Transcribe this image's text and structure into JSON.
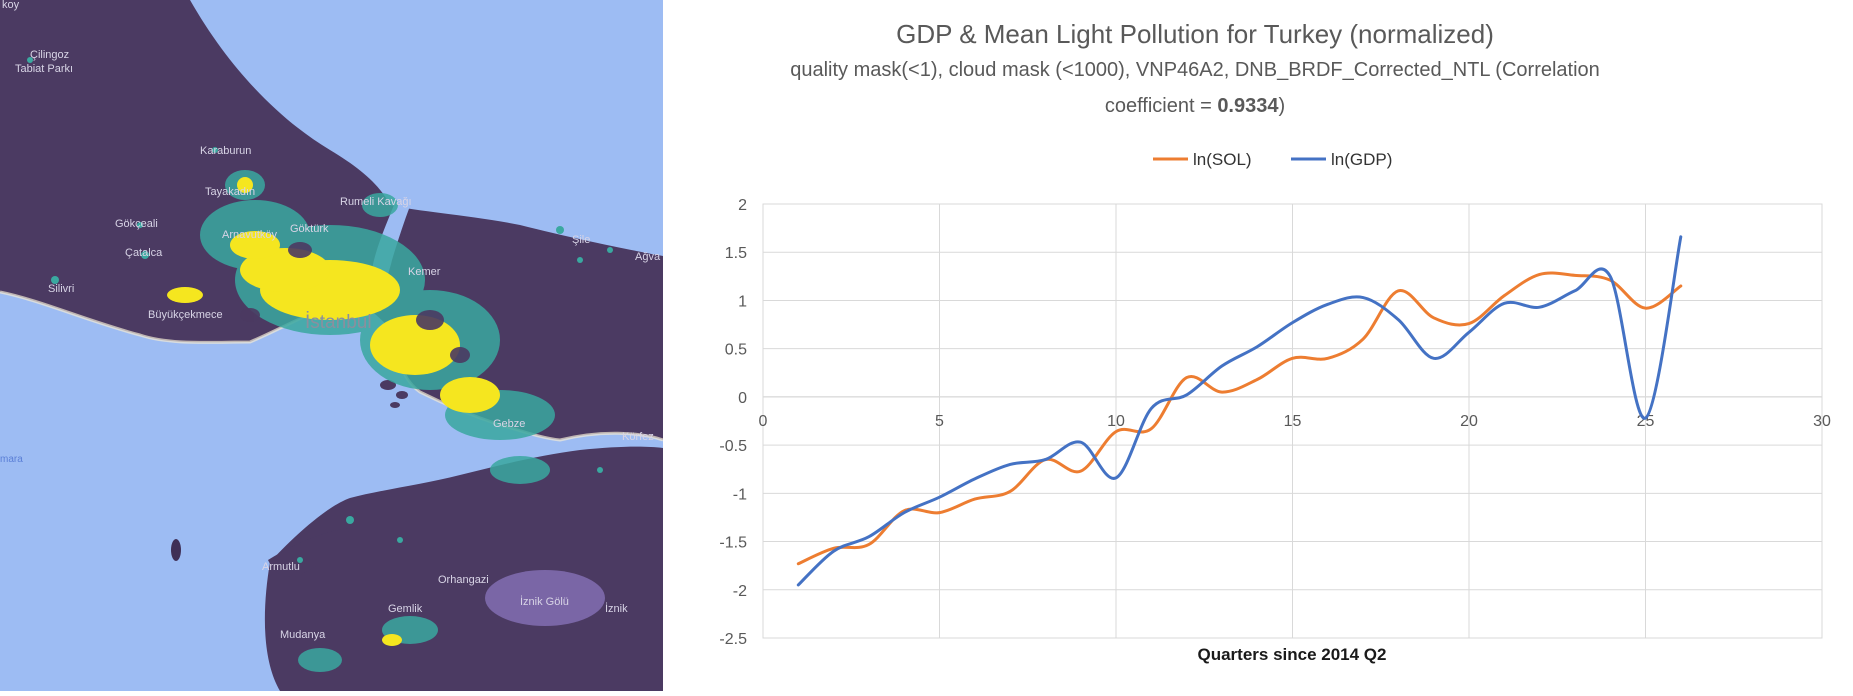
{
  "map": {
    "labels": {
      "city": "İstanbul",
      "cilingoz": "Çilingoz",
      "tabiat_parki": "Tabiat Parkı",
      "karaburun": "Karaburun",
      "tayakadin": "Tayakadın",
      "gokceali": "Gökçeali",
      "catalca": "Çatalca",
      "silivri": "Silivri",
      "buyukcekmece": "Büyükçekmece",
      "arnavutkoy": "Arnavutköy",
      "gokturk": "Göktürk",
      "rumelikavagi": "Rumeli Kavağı",
      "sile": "Şile",
      "agva": "Ağva",
      "kemer": "Kemer",
      "gebze": "Gebze",
      "korfez": "Körfez",
      "armutlu": "Armutlu",
      "orhangazi": "Orhangazi",
      "iznik_golu": "İznik Gölü",
      "iznik": "İznik",
      "gemlik": "Gemlik",
      "mudanya": "Mudanya",
      "marmara": "mara",
      "koy": "koy"
    },
    "colors": {
      "water": "#9dbcf3",
      "land": "#4b3a62",
      "light_high": "#f5e61f",
      "light_mid": "#3aa8a0"
    }
  },
  "chart_data": {
    "type": "line",
    "title": "GDP & Mean Light Pollution for Turkey (normalized)",
    "subtitle_line1": "quality mask(<1), cloud mask (<1000), VNP46A2, DNB_BRDF_Corrected_NTL (Correlation",
    "subtitle_line2_prefix": "coefficient = ",
    "subtitle_line2_value": "0.9334",
    "subtitle_line2_suffix": ")",
    "xlabel": "Quarters since 2014 Q2",
    "ylabel": "",
    "xlim": [
      0,
      30
    ],
    "ylim": [
      -2.5,
      2
    ],
    "x_ticks": [
      0,
      5,
      10,
      15,
      20,
      25,
      30
    ],
    "y_ticks": [
      2,
      1.5,
      1,
      0.5,
      0,
      -0.5,
      -1,
      -1.5,
      -2,
      -2.5
    ],
    "grid": true,
    "legend_position": "top-center",
    "x": [
      1,
      2,
      3,
      4,
      5,
      6,
      7,
      8,
      9,
      10,
      11,
      12,
      13,
      14,
      15,
      16,
      17,
      18,
      19,
      20,
      21,
      22,
      23,
      24,
      25,
      26
    ],
    "series": [
      {
        "name": "ln(SOL)",
        "color": "#ed7d31",
        "values": [
          -1.73,
          -1.57,
          -1.53,
          -1.18,
          -1.2,
          -1.06,
          -0.98,
          -0.65,
          -0.77,
          -0.36,
          -0.33,
          0.2,
          0.05,
          0.18,
          0.4,
          0.4,
          0.6,
          1.1,
          0.82,
          0.76,
          1.05,
          1.27,
          1.26,
          1.21,
          0.92,
          1.15
        ]
      },
      {
        "name": "ln(GDP)",
        "color": "#4472c4",
        "values": [
          -1.95,
          -1.6,
          -1.45,
          -1.2,
          -1.04,
          -0.85,
          -0.7,
          -0.65,
          -0.47,
          -0.84,
          -0.12,
          0.02,
          0.32,
          0.52,
          0.77,
          0.96,
          1.03,
          0.8,
          0.4,
          0.67,
          0.97,
          0.93,
          1.1,
          1.25,
          -0.22,
          1.66
        ]
      }
    ]
  }
}
